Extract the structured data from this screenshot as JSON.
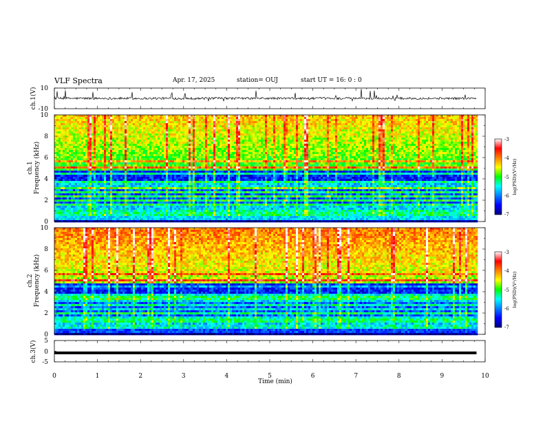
{
  "header": {
    "title": "VLF Spectra",
    "date": "Apr. 17, 2025",
    "station": "station= OUJ",
    "start": "start UT = 16: 0 : 0"
  },
  "chart_data": [
    {
      "type": "line",
      "panel": "ch1-waveform",
      "ylabel": "ch.1(V)",
      "ylim": [
        -10,
        10
      ],
      "yticks": [
        "10",
        "-10"
      ],
      "xlim": [
        0,
        10
      ],
      "baseline": 0
    },
    {
      "type": "heatmap",
      "panel": "ch1-spectrogram",
      "ylabel_top": "ch.1",
      "ylabel": "Frequency (kHz)",
      "ylim": [
        0,
        10
      ],
      "yticks": [
        "0",
        "2",
        "4",
        "6",
        "8",
        "10"
      ],
      "xlim": [
        0,
        10
      ],
      "data_end_min": 9.8,
      "colorbar": {
        "label": "log(PSD)(V²/Hz)",
        "range": [
          -7,
          -3
        ],
        "ticks": [
          "-3",
          "-4",
          "-5",
          "-6",
          "-7"
        ]
      }
    },
    {
      "type": "heatmap",
      "panel": "ch2-spectrogram",
      "ylabel_top": "ch.2",
      "ylabel": "Frequency (kHz)",
      "ylim": [
        0,
        10
      ],
      "yticks": [
        "0",
        "2",
        "4",
        "6",
        "8",
        "10"
      ],
      "xlim": [
        0,
        10
      ],
      "data_end_min": 9.8,
      "colorbar": {
        "label": "log(PSD)(V²/Hz)",
        "range": [
          -7,
          -3
        ],
        "ticks": [
          "-3",
          "-4",
          "-5",
          "-6",
          "-7"
        ]
      }
    },
    {
      "type": "line",
      "panel": "ch3-waveform",
      "ylabel": "ch.3(V)",
      "ylim": [
        -5,
        5
      ],
      "yticks": [
        "5",
        "0",
        "-5"
      ],
      "xlim": [
        0,
        10
      ],
      "constant_value": -0.8,
      "xlabel": "Time (min)",
      "xticks": [
        "0",
        "1",
        "2",
        "3",
        "4",
        "5",
        "6",
        "7",
        "8",
        "9",
        "10"
      ]
    }
  ]
}
